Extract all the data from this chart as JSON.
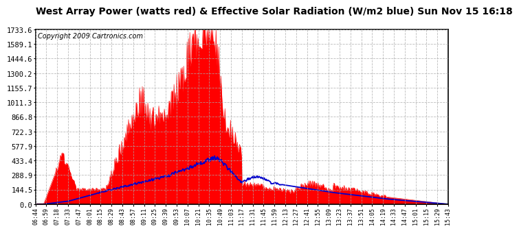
{
  "title": "West Array Power (watts red) & Effective Solar Radiation (W/m2 blue) Sun Nov 15 16:18",
  "copyright": "Copyright 2009 Cartronics.com",
  "yticks": [
    0.0,
    144.5,
    288.9,
    433.4,
    577.9,
    722.3,
    866.8,
    1011.3,
    1155.7,
    1300.2,
    1444.6,
    1589.1,
    1733.6
  ],
  "ymax": 1733.6,
  "ymin": 0.0,
  "bg_color": "#ffffff",
  "plot_bg_color": "#ffffff",
  "grid_color": "#aaaaaa",
  "red_color": "#ff0000",
  "blue_color": "#0000cc",
  "title_fontsize": 10,
  "copyright_fontsize": 7,
  "tick_fontsize": 7.5,
  "x_tick_fontsize": 6,
  "time_labels": [
    "06:44",
    "06:59",
    "07:18",
    "07:33",
    "07:47",
    "08:01",
    "08:15",
    "08:29",
    "08:43",
    "08:57",
    "09:11",
    "09:25",
    "09:39",
    "09:53",
    "10:07",
    "10:21",
    "10:35",
    "10:49",
    "11:03",
    "11:17",
    "11:31",
    "11:45",
    "11:59",
    "12:13",
    "12:27",
    "12:41",
    "12:55",
    "13:09",
    "13:23",
    "13:37",
    "13:51",
    "14:05",
    "14:19",
    "14:33",
    "14:47",
    "15:01",
    "15:15",
    "15:29",
    "15:43"
  ]
}
